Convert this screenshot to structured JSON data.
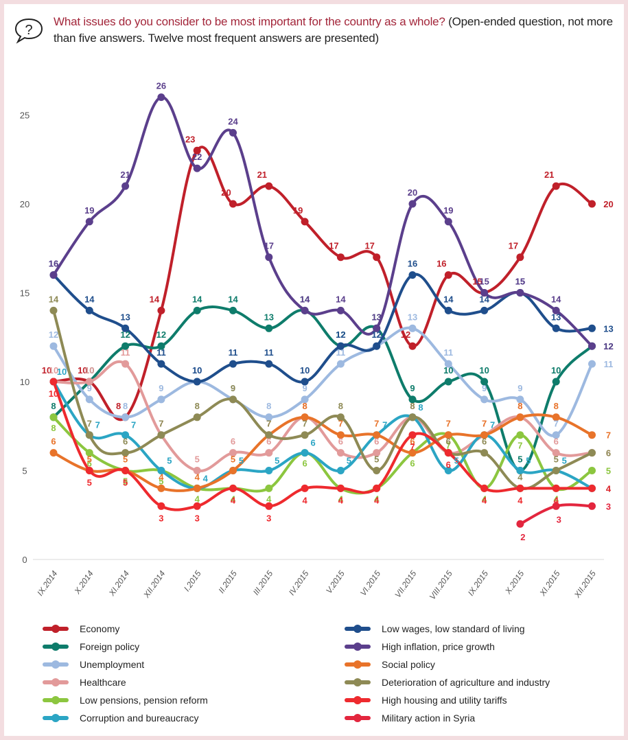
{
  "header": {
    "icon": "speech-bubble-question-icon",
    "question": "What issues do you consider to be most important for the country as a whole?",
    "note": " (Open-ended question, not more than five answers. Twelve most frequent answers are presented)"
  },
  "chart_data": {
    "type": "line",
    "title": "What issues do you consider to be most important for the country as a whole?",
    "xlabel": "",
    "ylabel": "",
    "ylim": [
      0,
      26
    ],
    "yticks": [
      0,
      5,
      10,
      15,
      20,
      25
    ],
    "grid": false,
    "legend_position": "bottom",
    "categories": [
      "IX.2014",
      "X.2014",
      "XI.2014",
      "XII.2014",
      "I.2015",
      "II.2015",
      "III.2015",
      "IV.2015",
      "V.2015",
      "VI.2015",
      "VII.2015",
      "VIII.2015",
      "IX.2015",
      "X.2015",
      "XI.2015",
      "XII.2015"
    ],
    "series": [
      {
        "name": "Economy",
        "color": "#c0202a",
        "values": [
          10,
          10,
          8,
          14,
          23,
          20,
          21,
          19,
          17,
          17,
          12,
          16,
          15,
          17,
          21,
          20
        ]
      },
      {
        "name": "Foreign policy",
        "color": "#0e7c6b",
        "values": [
          8,
          10,
          12,
          12,
          14,
          14,
          13,
          14,
          12,
          13,
          9,
          10,
          10,
          5,
          10,
          12
        ]
      },
      {
        "name": "Unemployment",
        "color": "#9db9e0",
        "values": [
          12,
          9,
          8,
          9,
          10,
          9,
          8,
          9,
          11,
          12,
          13,
          11,
          9,
          9,
          7,
          11
        ]
      },
      {
        "name": "Healthcare",
        "color": "#e29a9a",
        "values": [
          10,
          10,
          11,
          7,
          5,
          6,
          6,
          8,
          6,
          6,
          8,
          6,
          7,
          8,
          6,
          6
        ]
      },
      {
        "name": "Low pensions, pension reform",
        "color": "#8cc63f",
        "values": [
          8,
          6,
          5,
          5,
          4,
          4,
          4,
          6,
          4,
          4,
          6,
          7,
          4,
          7,
          4,
          5
        ]
      },
      {
        "name": "Corruption and bureaucracy",
        "color": "#2ba5c4",
        "values": [
          10,
          7,
          7,
          5,
          4,
          5,
          5,
          6,
          5,
          7,
          8,
          5,
          7,
          5,
          5,
          4
        ]
      },
      {
        "name": "Low wages, low standard of living",
        "color": "#1f4e8c",
        "values": [
          16,
          14,
          13,
          11,
          10,
          11,
          11,
          10,
          12,
          12,
          16,
          14,
          14,
          15,
          13,
          13
        ]
      },
      {
        "name": "High inflation, price growth",
        "color": "#5b3f8c",
        "values": [
          16,
          19,
          21,
          26,
          22,
          24,
          17,
          14,
          14,
          13,
          20,
          19,
          15,
          15,
          14,
          12
        ]
      },
      {
        "name": "Social policy",
        "color": "#e8732a",
        "values": [
          6,
          5,
          5,
          4,
          4,
          5,
          7,
          8,
          7,
          7,
          6,
          7,
          7,
          8,
          8,
          7
        ]
      },
      {
        "name": "Deterioration of agriculture and industry",
        "color": "#8e8a55",
        "values": [
          14,
          7,
          6,
          7,
          8,
          9,
          7,
          7,
          8,
          5,
          8,
          6,
          6,
          4,
          5,
          6
        ]
      },
      {
        "name": "High housing and utility tariffs",
        "color": "#ee2a2e",
        "values": [
          10,
          5,
          5,
          3,
          3,
          4,
          3,
          4,
          4,
          4,
          7,
          6,
          4,
          4,
          4,
          4
        ]
      },
      {
        "name": "Military action in Syria",
        "color": "#e3263e",
        "values": [
          null,
          null,
          null,
          null,
          null,
          null,
          null,
          null,
          null,
          null,
          null,
          null,
          null,
          2,
          3,
          3
        ]
      }
    ]
  },
  "legend": {
    "left": [
      "Economy",
      "Foreign policy",
      "Unemployment",
      "Healthcare",
      "Low pensions, pension reform",
      "Corruption and bureaucracy"
    ],
    "right": [
      "Low wages, low standard of living",
      "High inflation, price growth",
      "Social policy",
      "Deterioration of agriculture and industry",
      "High housing and utility tariffs",
      "Military action in Syria"
    ]
  }
}
